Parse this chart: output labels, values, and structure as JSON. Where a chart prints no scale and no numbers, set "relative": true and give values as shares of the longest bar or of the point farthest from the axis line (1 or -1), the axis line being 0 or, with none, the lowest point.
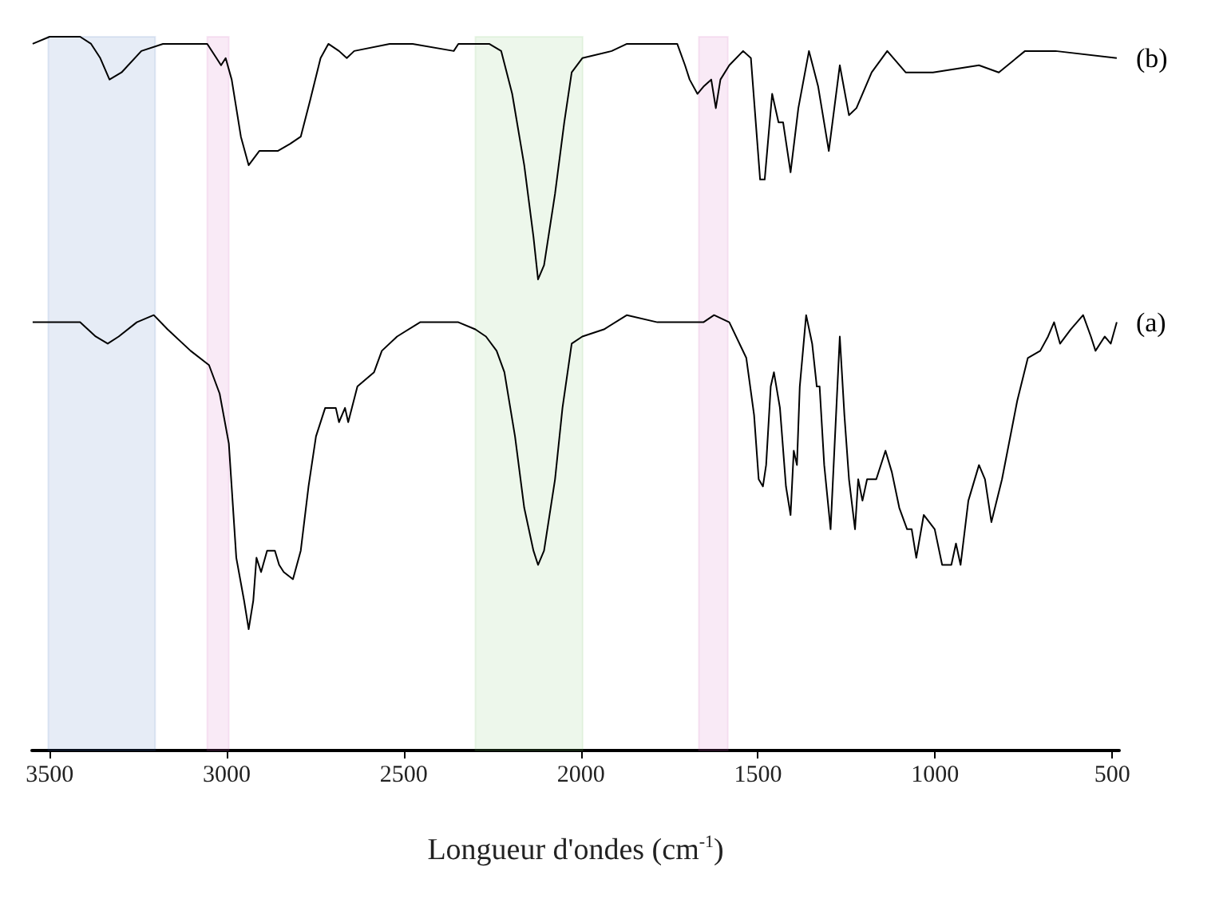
{
  "chart_data": {
    "type": "line",
    "relative": true,
    "xlabel": "Longueur d'ondes (cm$^{-1}$)",
    "xlim": [
      3550,
      480
    ],
    "xticks": [
      3500,
      3000,
      2500,
      2000,
      1500,
      1000,
      500
    ],
    "grid": false,
    "marker": "none",
    "series": [
      {
        "name": "(b)",
        "color": "#000000",
        "x": [
          3548,
          3500,
          3414,
          3383,
          3357,
          3331,
          3297,
          3241,
          3180,
          3055,
          3029,
          3016,
          3003,
          2986,
          2960,
          2938,
          2908,
          2856,
          2821,
          2791,
          2765,
          2735,
          2713,
          2683,
          2661,
          2640,
          2540,
          2475,
          2359,
          2346,
          2298,
          2259,
          2225,
          2194,
          2160,
          2134,
          2121,
          2104,
          2073,
          2047,
          2026,
          1996,
          1913,
          1870,
          1784,
          1728,
          1706,
          1693,
          1671,
          1654,
          1632,
          1619,
          1606,
          1581,
          1542,
          1520,
          1494,
          1481,
          1460,
          1442,
          1429,
          1408,
          1386,
          1356,
          1330,
          1300,
          1269,
          1243,
          1222,
          1179,
          1135,
          1083,
          1006,
          876,
          820,
          746,
          660,
          487
        ],
        "values": [
          0.99,
          1.0,
          1.0,
          0.99,
          0.97,
          0.94,
          0.95,
          0.98,
          0.99,
          0.99,
          0.97,
          0.96,
          0.97,
          0.94,
          0.86,
          0.82,
          0.84,
          0.84,
          0.85,
          0.86,
          0.91,
          0.97,
          0.99,
          0.98,
          0.97,
          0.98,
          0.99,
          0.99,
          0.98,
          0.99,
          0.99,
          0.99,
          0.98,
          0.92,
          0.82,
          0.72,
          0.66,
          0.68,
          0.78,
          0.88,
          0.95,
          0.97,
          0.98,
          0.99,
          0.99,
          0.99,
          0.96,
          0.94,
          0.92,
          0.93,
          0.94,
          0.9,
          0.94,
          0.96,
          0.98,
          0.97,
          0.8,
          0.8,
          0.92,
          0.88,
          0.88,
          0.81,
          0.9,
          0.98,
          0.93,
          0.84,
          0.96,
          0.89,
          0.9,
          0.95,
          0.98,
          0.95,
          0.95,
          0.96,
          0.95,
          0.98,
          0.98,
          0.97
        ]
      },
      {
        "name": "(a)",
        "color": "#000000",
        "x": [
          3548,
          3414,
          3370,
          3336,
          3305,
          3254,
          3206,
          3167,
          3102,
          3050,
          3020,
          2994,
          2973,
          2951,
          2938,
          2925,
          2916,
          2903,
          2886,
          2864,
          2852,
          2839,
          2813,
          2791,
          2769,
          2748,
          2722,
          2692,
          2683,
          2666,
          2657,
          2631,
          2584,
          2562,
          2519,
          2454,
          2389,
          2346,
          2298,
          2268,
          2238,
          2216,
          2186,
          2160,
          2134,
          2121,
          2104,
          2073,
          2052,
          2026,
          1996,
          1935,
          1870,
          1784,
          1719,
          1654,
          1624,
          1581,
          1533,
          1511,
          1498,
          1486,
          1477,
          1464,
          1455,
          1438,
          1421,
          1408,
          1399,
          1390,
          1382,
          1364,
          1347,
          1334,
          1326,
          1313,
          1295,
          1269,
          1256,
          1243,
          1226,
          1217,
          1205,
          1192,
          1166,
          1140,
          1122,
          1101,
          1079,
          1066,
          1053,
          1032,
          1001,
          980,
          954,
          941,
          928,
          906,
          876,
          859,
          841,
          811,
          768,
          738,
          703,
          681,
          664,
          647,
          617,
          582,
          560,
          547,
          521,
          504,
          487
        ],
        "values": [
          0.6,
          0.6,
          0.58,
          0.57,
          0.58,
          0.6,
          0.61,
          0.59,
          0.56,
          0.54,
          0.5,
          0.43,
          0.27,
          0.21,
          0.17,
          0.21,
          0.27,
          0.25,
          0.28,
          0.28,
          0.26,
          0.25,
          0.24,
          0.28,
          0.37,
          0.44,
          0.48,
          0.48,
          0.46,
          0.48,
          0.46,
          0.51,
          0.53,
          0.56,
          0.58,
          0.6,
          0.6,
          0.6,
          0.59,
          0.58,
          0.56,
          0.53,
          0.44,
          0.34,
          0.28,
          0.26,
          0.28,
          0.38,
          0.48,
          0.57,
          0.58,
          0.59,
          0.61,
          0.6,
          0.6,
          0.6,
          0.61,
          0.6,
          0.55,
          0.47,
          0.38,
          0.37,
          0.4,
          0.51,
          0.53,
          0.48,
          0.37,
          0.33,
          0.42,
          0.4,
          0.51,
          0.61,
          0.57,
          0.51,
          0.51,
          0.4,
          0.31,
          0.58,
          0.47,
          0.38,
          0.31,
          0.38,
          0.35,
          0.38,
          0.38,
          0.42,
          0.39,
          0.34,
          0.31,
          0.31,
          0.27,
          0.33,
          0.31,
          0.26,
          0.26,
          0.29,
          0.26,
          0.35,
          0.4,
          0.38,
          0.32,
          0.38,
          0.49,
          0.55,
          0.56,
          0.58,
          0.6,
          0.57,
          0.59,
          0.61,
          0.58,
          0.56,
          0.58,
          0.57,
          0.6
        ]
      }
    ],
    "bands": [
      {
        "axis": "x",
        "from": 3504,
        "to": 3202,
        "color": "#2f5fb3"
      },
      {
        "axis": "x",
        "from": 3055,
        "to": 2994,
        "color": "#d04fb8"
      },
      {
        "axis": "x",
        "from": 2298,
        "to": 1995,
        "color": "#6cc05c"
      },
      {
        "axis": "x",
        "from": 1667,
        "to": 1585,
        "color": "#d04fb8"
      }
    ]
  }
}
